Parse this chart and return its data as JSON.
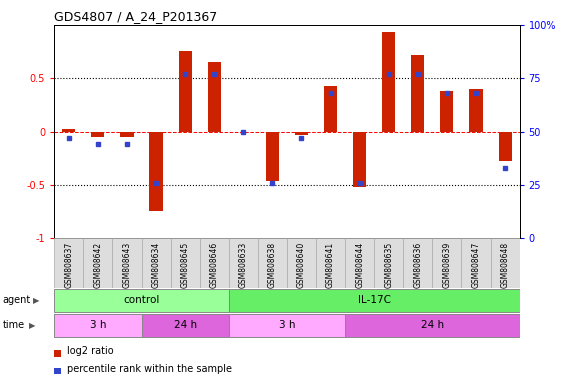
{
  "title": "GDS4807 / A_24_P201367",
  "samples": [
    "GSM808637",
    "GSM808642",
    "GSM808643",
    "GSM808634",
    "GSM808645",
    "GSM808646",
    "GSM808633",
    "GSM808638",
    "GSM808640",
    "GSM808641",
    "GSM808644",
    "GSM808635",
    "GSM808636",
    "GSM808639",
    "GSM808647",
    "GSM808648"
  ],
  "log2_ratio": [
    0.02,
    -0.05,
    -0.05,
    -0.75,
    0.76,
    0.65,
    0.0,
    -0.46,
    -0.03,
    0.43,
    -0.52,
    0.93,
    0.72,
    0.38,
    0.4,
    -0.28
  ],
  "percentile": [
    47,
    44,
    44,
    26,
    77,
    77,
    50,
    26,
    47,
    68,
    26,
    77,
    77,
    68,
    68,
    33
  ],
  "agent_groups": [
    {
      "label": "control",
      "start": 0,
      "end": 6,
      "color": "#99ff99"
    },
    {
      "label": "IL-17C",
      "start": 6,
      "end": 16,
      "color": "#66ee66"
    }
  ],
  "time_groups": [
    {
      "label": "3 h",
      "start": 0,
      "end": 3,
      "color": "#ffaaff"
    },
    {
      "label": "24 h",
      "start": 3,
      "end": 6,
      "color": "#dd66dd"
    },
    {
      "label": "3 h",
      "start": 6,
      "end": 10,
      "color": "#ffaaff"
    },
    {
      "label": "24 h",
      "start": 10,
      "end": 16,
      "color": "#dd66dd"
    }
  ],
  "bar_color": "#cc2200",
  "dot_color": "#3344cc",
  "ylim": [
    -1,
    1
  ],
  "yticks_left": [
    -1,
    -0.5,
    0,
    0.5
  ],
  "ytick_labels_left": [
    "-1",
    "-0.5",
    "0",
    "0.5"
  ],
  "yticks_right": [
    0,
    25,
    50,
    75,
    100
  ],
  "ytick_labels_right": [
    "0",
    "25",
    "50",
    "75",
    "100%"
  ],
  "hlines_dotted": [
    0.5,
    -0.5
  ],
  "hline_dashed": 0.0,
  "bg_color": "#ffffff",
  "legend_items": [
    {
      "label": "log2 ratio",
      "color": "#cc2200"
    },
    {
      "label": "percentile rank within the sample",
      "color": "#3344cc"
    }
  ]
}
